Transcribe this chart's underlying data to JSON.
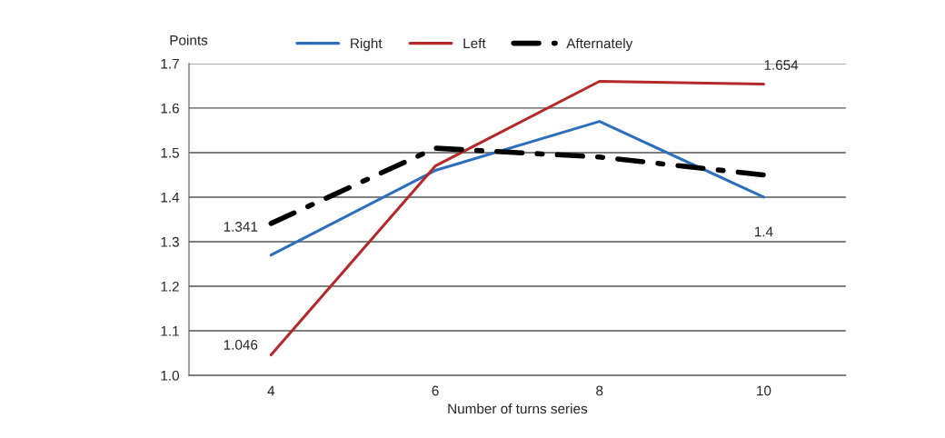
{
  "chart_data": {
    "type": "line",
    "xlabel": "Number of turns series",
    "ylabel": "Points",
    "categories": [
      "4",
      "6",
      "8",
      "10"
    ],
    "series": [
      {
        "name": "Right",
        "color": "#2e6fbd",
        "values": [
          1.27,
          1.46,
          1.57,
          1.4
        ],
        "value_labels": [
          null,
          null,
          null,
          "1.4"
        ],
        "line_style": "solid"
      },
      {
        "name": "Left",
        "color": "#b22a2a",
        "values": [
          1.046,
          1.47,
          1.66,
          1.654
        ],
        "value_labels": [
          "1.046",
          null,
          null,
          "1.654"
        ],
        "line_style": "solid"
      },
      {
        "name": "Afternately",
        "color": "#000000",
        "values": [
          1.341,
          1.51,
          1.49,
          1.45
        ],
        "value_labels": [
          "1.341",
          null,
          null,
          null
        ],
        "line_style": "dashed"
      }
    ],
    "ylim": [
      1.0,
      1.7
    ],
    "yticks": [
      {
        "value": 1.0,
        "label": "1.0"
      },
      1.1,
      1.2,
      1.3,
      1.4,
      1.5,
      1.6,
      1.7
    ],
    "grid": "y",
    "legend": "top",
    "marker": "none"
  }
}
